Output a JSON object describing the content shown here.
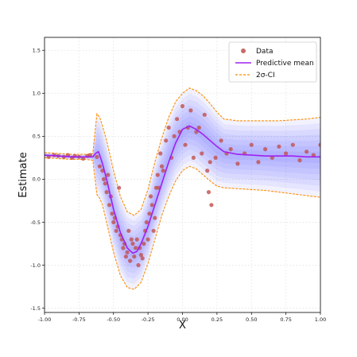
{
  "chart_data": {
    "type": "scatter",
    "title": "",
    "xlabel": "X",
    "ylabel": "Estimate",
    "xlim": [
      -1.0,
      1.0
    ],
    "ylim": [
      -1.55,
      1.65
    ],
    "grid": true,
    "legend_position": "top-right",
    "x_ticks": [
      "-1.00",
      "-0.75",
      "-0.50",
      "-0.25",
      "0.00",
      "0.25",
      "0.50",
      "0.75",
      "1.00"
    ],
    "y_ticks": [
      "1.5",
      "1.0",
      "0.5",
      "0.0",
      "-0.5",
      "-1.0",
      "-1.5"
    ],
    "legend": {
      "data": "Data",
      "mean": "Predictive mean",
      "ci": "2σ-CI"
    },
    "colors": {
      "data": "#c0504d",
      "mean": "#a020f0",
      "ci": "#ff8c00",
      "band": "#4040ff"
    },
    "mean_curve": {
      "x": [
        -1.0,
        -0.9,
        -0.8,
        -0.7,
        -0.65,
        -0.63,
        -0.61,
        -0.6,
        -0.58,
        -0.55,
        -0.5,
        -0.45,
        -0.4,
        -0.36,
        -0.33,
        -0.3,
        -0.25,
        -0.2,
        -0.15,
        -0.1,
        -0.05,
        0.0,
        0.05,
        0.1,
        0.15,
        0.2,
        0.25,
        0.3,
        0.4,
        0.5,
        0.6,
        0.7,
        0.8,
        0.9,
        1.0
      ],
      "y": [
        0.28,
        0.27,
        0.26,
        0.26,
        0.26,
        0.3,
        0.32,
        0.28,
        0.18,
        0.0,
        -0.35,
        -0.62,
        -0.8,
        -0.86,
        -0.84,
        -0.75,
        -0.55,
        -0.3,
        -0.05,
        0.2,
        0.42,
        0.58,
        0.62,
        0.58,
        0.52,
        0.45,
        0.38,
        0.32,
        0.29,
        0.28,
        0.27,
        0.27,
        0.27,
        0.26,
        0.26
      ]
    },
    "ci_upper": {
      "x": [
        -1.0,
        -0.9,
        -0.8,
        -0.7,
        -0.65,
        -0.62,
        -0.6,
        -0.58,
        -0.55,
        -0.5,
        -0.45,
        -0.4,
        -0.35,
        -0.3,
        -0.25,
        -0.2,
        -0.15,
        -0.1,
        -0.05,
        0.0,
        0.05,
        0.1,
        0.15,
        0.2,
        0.25,
        0.3,
        0.4,
        0.5,
        0.6,
        0.7,
        0.8,
        0.9,
        1.0
      ],
      "y": [
        0.31,
        0.3,
        0.29,
        0.29,
        0.3,
        0.76,
        0.72,
        0.62,
        0.45,
        0.1,
        -0.2,
        -0.38,
        -0.42,
        -0.35,
        -0.12,
        0.2,
        0.48,
        0.72,
        0.9,
        1.0,
        1.06,
        1.03,
        0.97,
        0.88,
        0.78,
        0.7,
        0.68,
        0.68,
        0.68,
        0.68,
        0.69,
        0.7,
        0.72
      ]
    },
    "ci_lower": {
      "x": [
        -1.0,
        -0.9,
        -0.8,
        -0.7,
        -0.65,
        -0.62,
        -0.6,
        -0.58,
        -0.55,
        -0.5,
        -0.45,
        -0.4,
        -0.35,
        -0.3,
        -0.25,
        -0.2,
        -0.15,
        -0.1,
        -0.05,
        0.0,
        0.05,
        0.1,
        0.15,
        0.2,
        0.25,
        0.3,
        0.4,
        0.5,
        0.6,
        0.7,
        0.8,
        0.9,
        1.0
      ],
      "y": [
        0.25,
        0.24,
        0.23,
        0.23,
        0.22,
        -0.18,
        -0.22,
        -0.3,
        -0.5,
        -0.85,
        -1.12,
        -1.26,
        -1.28,
        -1.2,
        -0.98,
        -0.7,
        -0.42,
        -0.2,
        -0.02,
        0.1,
        0.15,
        0.12,
        0.05,
        -0.02,
        -0.08,
        -0.1,
        -0.11,
        -0.12,
        -0.13,
        -0.15,
        -0.17,
        -0.19,
        -0.21
      ]
    },
    "points": {
      "x": [
        -0.97,
        -0.93,
        -0.9,
        -0.86,
        -0.83,
        -0.8,
        -0.78,
        -0.75,
        -0.72,
        -0.69,
        -0.67,
        -0.62,
        -0.6,
        -0.58,
        -0.57,
        -0.56,
        -0.55,
        -0.54,
        -0.53,
        -0.52,
        -0.51,
        -0.5,
        -0.49,
        -0.48,
        -0.47,
        -0.46,
        -0.45,
        -0.44,
        -0.43,
        -0.42,
        -0.41,
        -0.4,
        -0.39,
        -0.38,
        -0.37,
        -0.36,
        -0.35,
        -0.34,
        -0.33,
        -0.32,
        -0.31,
        -0.3,
        -0.29,
        -0.28,
        -0.27,
        -0.26,
        -0.25,
        -0.24,
        -0.23,
        -0.22,
        -0.21,
        -0.2,
        -0.19,
        -0.18,
        -0.17,
        -0.16,
        -0.15,
        -0.14,
        -0.12,
        -0.1,
        -0.08,
        -0.06,
        -0.04,
        -0.02,
        0.0,
        0.02,
        0.04,
        0.06,
        0.08,
        0.1,
        0.12,
        0.14,
        0.16,
        0.18,
        0.19,
        0.2,
        0.21,
        0.24,
        0.28,
        0.32,
        0.35,
        0.4,
        0.45,
        0.5,
        0.55,
        0.6,
        0.65,
        0.7,
        0.75,
        0.8,
        0.85,
        0.9,
        0.95,
        1.0
      ],
      "y": [
        0.26,
        0.28,
        0.27,
        0.26,
        0.28,
        0.25,
        0.27,
        0.26,
        0.24,
        0.27,
        0.28,
        0.26,
        0.15,
        0.1,
        0.0,
        -0.05,
        -0.15,
        0.05,
        -0.3,
        -0.2,
        -0.4,
        -0.5,
        -0.45,
        -0.6,
        -0.55,
        -0.1,
        -0.65,
        -0.7,
        -0.8,
        -0.75,
        -0.9,
        -0.85,
        -0.6,
        -0.95,
        -0.7,
        -0.75,
        -0.9,
        -0.8,
        -0.7,
        -1.0,
        -0.8,
        -0.88,
        -0.92,
        -0.75,
        -0.6,
        -0.5,
        -0.7,
        -0.4,
        -0.2,
        -0.3,
        -0.6,
        -0.45,
        -0.1,
        0.05,
        -0.1,
        0.3,
        0.15,
        0.1,
        0.45,
        0.6,
        0.25,
        0.5,
        0.7,
        0.55,
        0.85,
        0.4,
        0.6,
        0.8,
        0.25,
        0.55,
        0.6,
        0.3,
        0.75,
        0.1,
        -0.15,
        0.2,
        -0.3,
        0.25,
        0.45,
        0.3,
        0.35,
        0.18,
        0.3,
        0.4,
        0.2,
        0.35,
        0.25,
        0.38,
        0.3,
        0.4,
        0.22,
        0.32,
        0.28,
        0.4
      ]
    }
  }
}
